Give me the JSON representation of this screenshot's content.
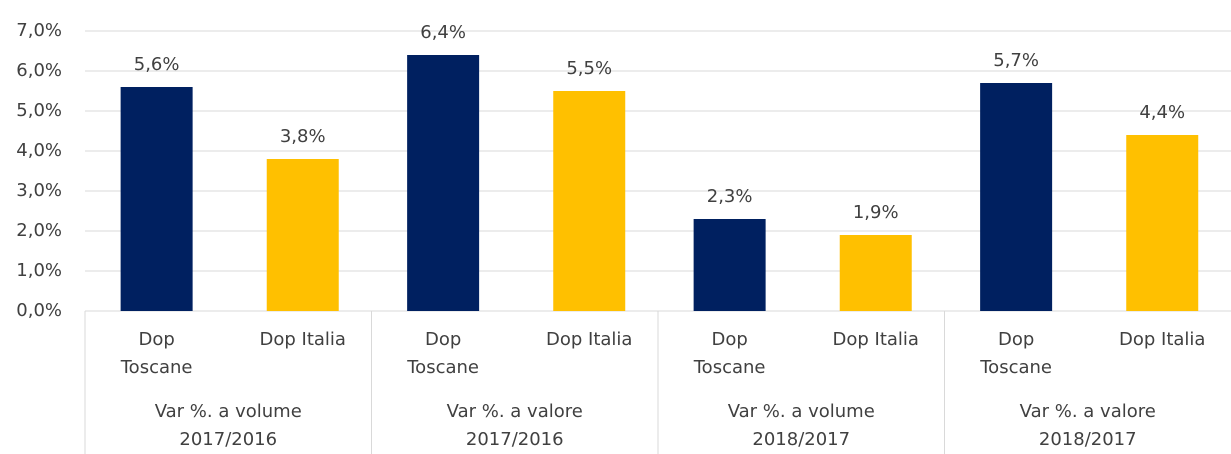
{
  "chart_data": {
    "type": "bar",
    "categories": [
      "Var %. a volume 2017/2016",
      "Var %. a valore 2017/2016",
      "Var %. a volume 2018/2017",
      "Var %. a valore 2018/2017"
    ],
    "series": [
      {
        "name": "Dop Toscane",
        "color": "#002060",
        "values": [
          5.6,
          6.4,
          2.3,
          5.7
        ],
        "value_labels": [
          "5,6%",
          "6,4%",
          "2,3%",
          "5,7%"
        ]
      },
      {
        "name": "Dop Italia",
        "color": "#FFC000",
        "values": [
          3.8,
          5.5,
          1.9,
          4.4
        ],
        "value_labels": [
          "3,8%",
          "5,5%",
          "1,9%",
          "4,4%"
        ]
      }
    ],
    "ylim": [
      0,
      7
    ],
    "yticks": [
      {
        "value": 0,
        "label": "0,0%"
      },
      {
        "value": 1,
        "label": "1,0%"
      },
      {
        "value": 2,
        "label": "2,0%"
      },
      {
        "value": 3,
        "label": "3,0%"
      },
      {
        "value": 4,
        "label": "4,0%"
      },
      {
        "value": 5,
        "label": "5,0%"
      },
      {
        "value": 6,
        "label": "6,0%"
      },
      {
        "value": 7,
        "label": "7,0%"
      }
    ],
    "grid": true
  }
}
